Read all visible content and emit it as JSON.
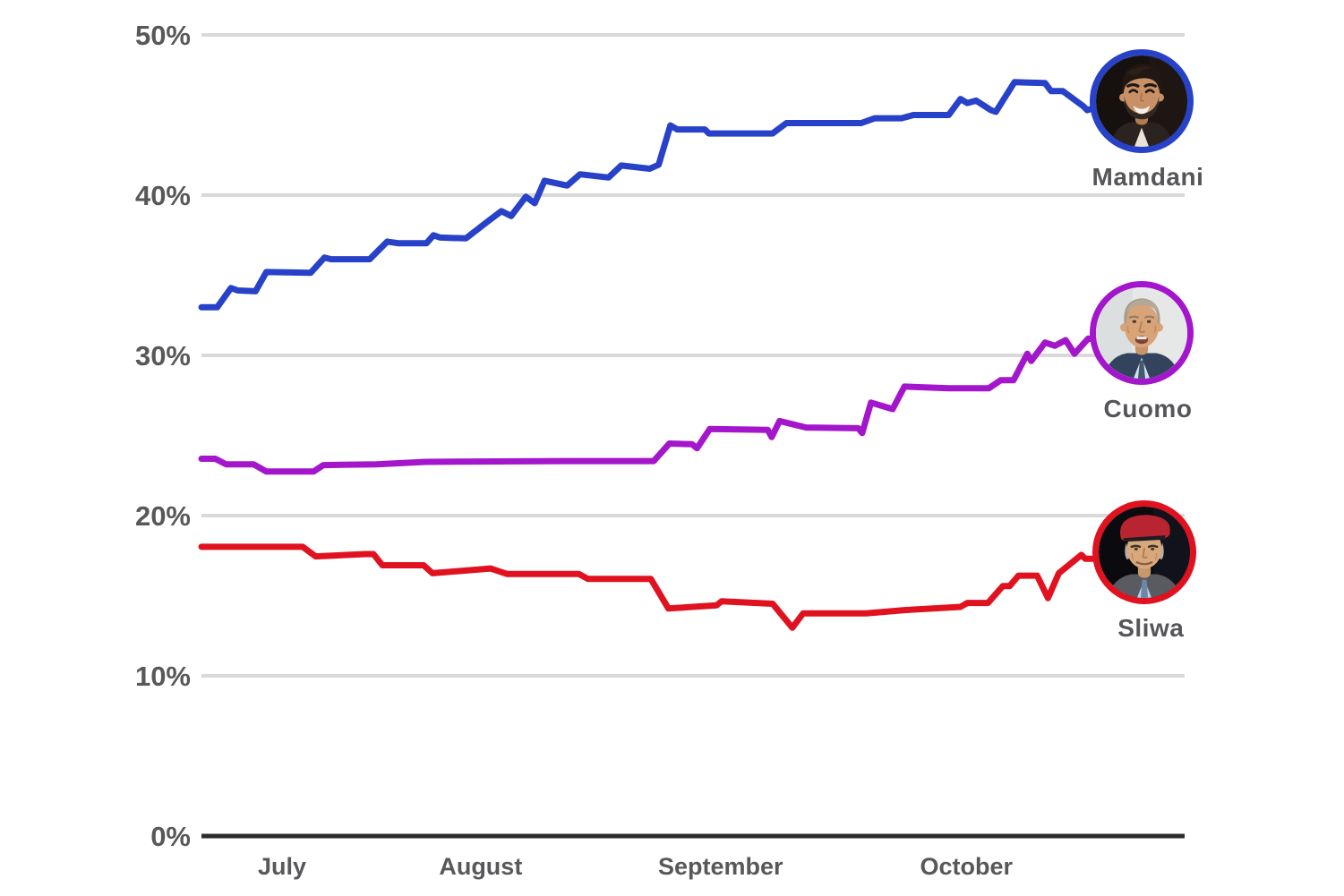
{
  "chart_data": {
    "type": "line",
    "title": "",
    "xlabel": "",
    "ylabel": "",
    "ylim": [
      0,
      50
    ],
    "grid": true,
    "legend_position": "right-of-line-ends",
    "colors": {
      "mamdani": "#2742c9",
      "cuomo": "#a416cb",
      "sliwa": "#e11220",
      "gridline": "#d9d9d9",
      "axis": "#2d2d30",
      "label_text": "#58585b"
    },
    "y_ticks": [
      {
        "value": 0,
        "label": "0%"
      },
      {
        "value": 10,
        "label": "10%"
      },
      {
        "value": 20,
        "label": "20%"
      },
      {
        "value": 30,
        "label": "30%"
      },
      {
        "value": 40,
        "label": "40%"
      },
      {
        "value": 50,
        "label": "50%"
      }
    ],
    "x_months": [
      {
        "label": "July",
        "t": 0.082
      },
      {
        "label": "August",
        "t": 0.284
      },
      {
        "label": "September",
        "t": 0.528
      },
      {
        "label": "October",
        "t": 0.778
      }
    ],
    "series": [
      {
        "name": "Mamdani",
        "color": "#2742c9",
        "avatar": "mamdani",
        "points": [
          [
            0.0,
            33.0
          ],
          [
            0.016,
            33.0
          ],
          [
            0.03,
            34.2
          ],
          [
            0.037,
            34.05
          ],
          [
            0.055,
            34.0
          ],
          [
            0.066,
            35.2
          ],
          [
            0.111,
            35.15
          ],
          [
            0.125,
            36.1
          ],
          [
            0.132,
            36.0
          ],
          [
            0.171,
            36.0
          ],
          [
            0.189,
            37.1
          ],
          [
            0.2,
            37.0
          ],
          [
            0.229,
            37.0
          ],
          [
            0.236,
            37.5
          ],
          [
            0.243,
            37.35
          ],
          [
            0.269,
            37.3
          ],
          [
            0.29,
            38.3
          ],
          [
            0.305,
            39.0
          ],
          [
            0.315,
            38.7
          ],
          [
            0.33,
            39.9
          ],
          [
            0.339,
            39.5
          ],
          [
            0.349,
            40.9
          ],
          [
            0.372,
            40.6
          ],
          [
            0.385,
            41.3
          ],
          [
            0.414,
            41.1
          ],
          [
            0.427,
            41.85
          ],
          [
            0.456,
            41.65
          ],
          [
            0.465,
            41.9
          ],
          [
            0.477,
            44.35
          ],
          [
            0.484,
            44.1
          ],
          [
            0.512,
            44.1
          ],
          [
            0.516,
            43.85
          ],
          [
            0.581,
            43.85
          ],
          [
            0.595,
            44.5
          ],
          [
            0.671,
            44.5
          ],
          [
            0.685,
            44.8
          ],
          [
            0.712,
            44.8
          ],
          [
            0.724,
            45.0
          ],
          [
            0.76,
            45.0
          ],
          [
            0.772,
            46.0
          ],
          [
            0.779,
            45.75
          ],
          [
            0.788,
            45.9
          ],
          [
            0.803,
            45.3
          ],
          [
            0.808,
            45.2
          ],
          [
            0.827,
            47.05
          ],
          [
            0.858,
            47.0
          ],
          [
            0.864,
            46.5
          ],
          [
            0.876,
            46.5
          ],
          [
            0.897,
            45.55
          ],
          [
            0.901,
            45.3
          ],
          [
            0.908,
            45.45
          ]
        ]
      },
      {
        "name": "Cuomo",
        "color": "#a416cb",
        "avatar": "cuomo",
        "points": [
          [
            0.0,
            23.55
          ],
          [
            0.014,
            23.55
          ],
          [
            0.025,
            23.2
          ],
          [
            0.053,
            23.2
          ],
          [
            0.066,
            22.75
          ],
          [
            0.114,
            22.75
          ],
          [
            0.124,
            23.15
          ],
          [
            0.178,
            23.2
          ],
          [
            0.228,
            23.35
          ],
          [
            0.369,
            23.4
          ],
          [
            0.46,
            23.4
          ],
          [
            0.476,
            24.5
          ],
          [
            0.499,
            24.45
          ],
          [
            0.504,
            24.2
          ],
          [
            0.517,
            25.4
          ],
          [
            0.576,
            25.35
          ],
          [
            0.58,
            24.9
          ],
          [
            0.588,
            25.9
          ],
          [
            0.615,
            25.5
          ],
          [
            0.668,
            25.45
          ],
          [
            0.672,
            25.15
          ],
          [
            0.681,
            27.05
          ],
          [
            0.703,
            26.65
          ],
          [
            0.715,
            28.05
          ],
          [
            0.76,
            27.95
          ],
          [
            0.801,
            27.95
          ],
          [
            0.813,
            28.45
          ],
          [
            0.826,
            28.45
          ],
          [
            0.84,
            30.1
          ],
          [
            0.844,
            29.65
          ],
          [
            0.858,
            30.8
          ],
          [
            0.868,
            30.6
          ],
          [
            0.879,
            30.95
          ],
          [
            0.888,
            30.1
          ],
          [
            0.902,
            31.05
          ],
          [
            0.908,
            31.0
          ]
        ]
      },
      {
        "name": "Sliwa",
        "color": "#e11220",
        "avatar": "sliwa",
        "points": [
          [
            0.0,
            18.05
          ],
          [
            0.103,
            18.05
          ],
          [
            0.116,
            17.45
          ],
          [
            0.167,
            17.6
          ],
          [
            0.175,
            17.6
          ],
          [
            0.184,
            16.9
          ],
          [
            0.226,
            16.9
          ],
          [
            0.235,
            16.4
          ],
          [
            0.294,
            16.7
          ],
          [
            0.311,
            16.35
          ],
          [
            0.384,
            16.35
          ],
          [
            0.393,
            16.05
          ],
          [
            0.457,
            16.05
          ],
          [
            0.475,
            14.2
          ],
          [
            0.524,
            14.4
          ],
          [
            0.529,
            14.65
          ],
          [
            0.581,
            14.5
          ],
          [
            0.601,
            13.0
          ],
          [
            0.612,
            13.9
          ],
          [
            0.676,
            13.9
          ],
          [
            0.715,
            14.1
          ],
          [
            0.772,
            14.3
          ],
          [
            0.779,
            14.55
          ],
          [
            0.8,
            14.55
          ],
          [
            0.815,
            15.6
          ],
          [
            0.822,
            15.6
          ],
          [
            0.831,
            16.25
          ],
          [
            0.85,
            16.25
          ],
          [
            0.861,
            14.85
          ],
          [
            0.872,
            16.4
          ],
          [
            0.895,
            17.55
          ],
          [
            0.899,
            17.3
          ],
          [
            0.911,
            17.3
          ]
        ]
      }
    ]
  }
}
